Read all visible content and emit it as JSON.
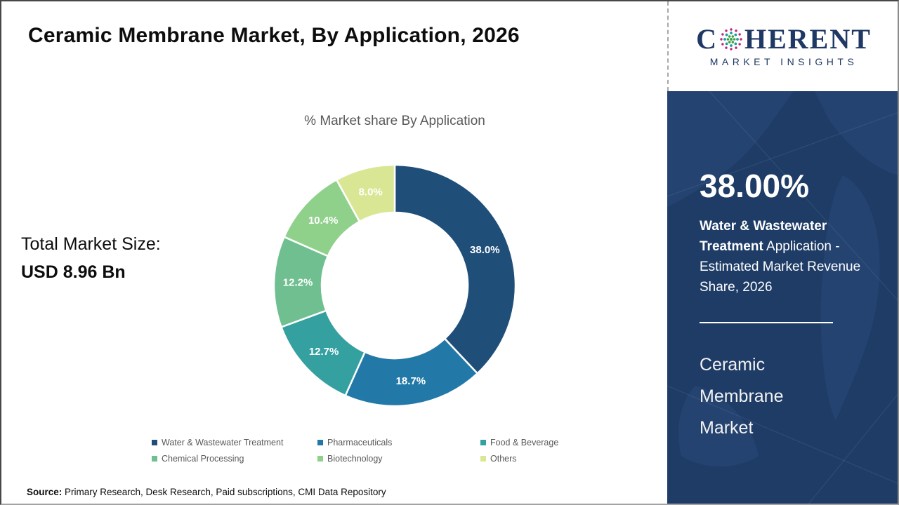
{
  "page": {
    "title": "Ceramic Membrane Market, By Application, 2026",
    "source_label": "Source:",
    "source_text": " Primary Research, Desk Research, Paid subscriptions, CMI Data Repository"
  },
  "logo": {
    "part1": "C",
    "part2": "HERENT",
    "subtitle": "MARKET INSIGHTS",
    "brand_navy": "#1f3864",
    "globe_colors": {
      "outer": "#c2247e",
      "middle": "#1a9f9c",
      "inner": "#42a047"
    }
  },
  "left_panel": {
    "market_size_label": "Total Market Size:",
    "market_size_value": "USD 8.96 Bn"
  },
  "sidebar": {
    "highlight_value": "38.00%",
    "highlight_bold": "Water & Wastewater Treatment",
    "highlight_rest": " Application - Estimated Market Revenue Share, 2026",
    "market_name_lines": [
      "Ceramic",
      "Membrane",
      "Market"
    ],
    "background_color": "#1e3c66"
  },
  "chart_data": {
    "type": "pie",
    "donut": true,
    "title": "% Market share By Application",
    "categories": [
      "Water & Wastewater Treatment",
      "Pharmaceuticals",
      "Food & Beverage",
      "Chemical Processing",
      "Biotechnology",
      "Others"
    ],
    "values": [
      38.0,
      18.7,
      12.7,
      12.2,
      10.4,
      8.0
    ],
    "labels": [
      "38.0%",
      "18.7%",
      "12.7%",
      "12.2%",
      "10.4%",
      "8.0%"
    ],
    "colors": [
      "#1f4e79",
      "#2279a8",
      "#35a0a0",
      "#70bf90",
      "#8fd18b",
      "#d9e794"
    ],
    "start_angle_deg": 0,
    "direction": "clockwise",
    "legend_position": "bottom",
    "outer_radius": 172,
    "inner_radius": 104,
    "label_radius": 138
  }
}
